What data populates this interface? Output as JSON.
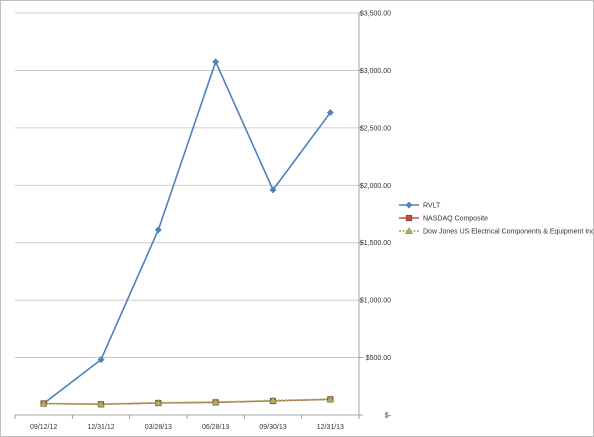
{
  "chart_data": {
    "type": "line",
    "categories": [
      "09/12/12",
      "12/31/12",
      "03/28/13",
      "06/28/13",
      "09/30/13",
      "12/31/13"
    ],
    "series": [
      {
        "name": "RVLT",
        "values": [
          100,
          482,
          1612,
          3075,
          1960,
          2633
        ],
        "color": "#4f81bd",
        "marker": "diamond",
        "line_style": "solid"
      },
      {
        "name": "NASDAQ Composite",
        "values": [
          100,
          93,
          104,
          110,
          122,
          136
        ],
        "color": "#c0504d",
        "marker": "square",
        "line_style": "solid"
      },
      {
        "name": "Dow Jones US Electrical Components  & Equipment Index",
        "values": [
          100,
          95,
          107,
          112,
          126,
          138
        ],
        "color": "#9bbb59",
        "marker": "triangle",
        "line_style": "dotted"
      }
    ],
    "yticks": [
      0,
      500,
      1000,
      1500,
      2000,
      2500,
      3000,
      3500
    ],
    "ytick_labels": [
      "$-",
      "$500.00",
      "$1,000.00",
      "$1,500.00",
      "$2,000.00",
      "$2,500.00",
      "$3,000.00",
      "$3,500.00"
    ],
    "ylim": [
      0,
      3500
    ],
    "y_axis_side": "right",
    "grid": true,
    "legend_position": "right",
    "title": "",
    "xlabel": "",
    "ylabel": ""
  }
}
